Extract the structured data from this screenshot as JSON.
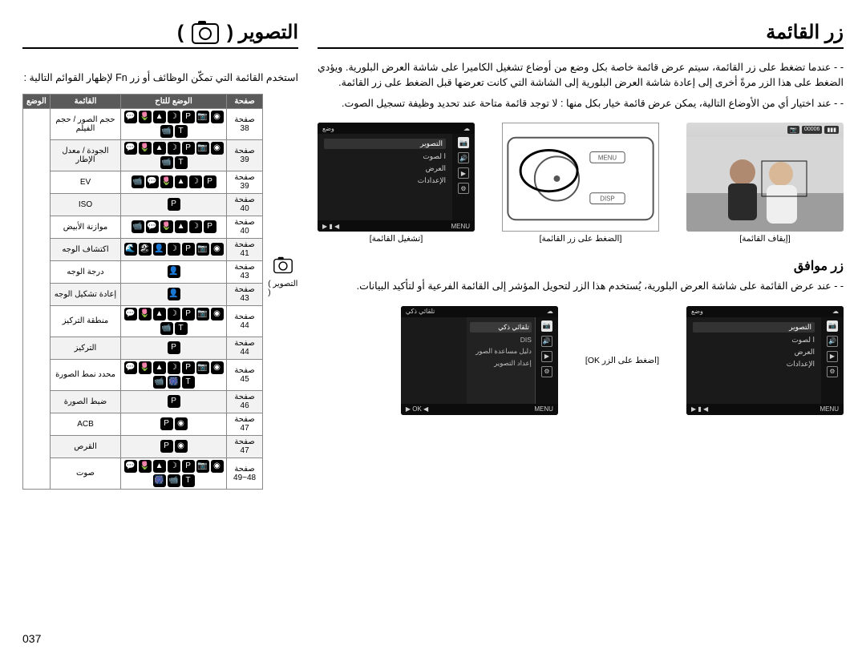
{
  "page_number": "037",
  "colors": {
    "text": "#000000",
    "table_head_bg": "#5a5a5a",
    "table_head_fg": "#ffffff",
    "table_border": "#888888",
    "lcd_bg": "#1a1a1a"
  },
  "right": {
    "heading": "زر القائمة",
    "para1": "-  عندما تضغط على زر القائمة، سيتم عرض قائمة خاصة بكل وضع من أوضاع تشغيل الكاميرا على شاشة العرض البلورية. ويؤدي الضغط على هذا الزر مرةً أخرى إلى إعادة شاشة العرض البلورية إلى الشاشة التي كانت تعرضها قبل الضغط على زر القائمة.",
    "para2": "-  عند اختيار أي من الأوضاع التالية، يمكن عرض قائمة خيار بكل منها : لا توجد قائمة متاحة عند تحديد وظيفة تسجيل الصوت.",
    "lcd1": {
      "head_right": "وضع",
      "side": [
        "📷",
        "🔊",
        "▶",
        "⚙"
      ],
      "items": [
        "التصوير",
        "ا لصوت",
        "العرض",
        "الإعدادات"
      ],
      "foot_left": "MENU",
      "foot_nav": "◀ ▮ ▶",
      "caption": "[إيقاف القائمة]"
    },
    "sketch_caption": "[الضغط على زر القائمة]",
    "lcd2": {
      "head_right": "وضع",
      "side": [
        "📷",
        "🔊",
        "▶",
        "⚙"
      ],
      "items": [
        "التصوير",
        "ا لصوت",
        "العرض",
        "الإعدادات"
      ],
      "foot_left": "MENU",
      "foot_nav": "◀ ▮ ▶",
      "caption": "[تشغيل القائمة]"
    },
    "sub_heading": "زر موافق",
    "sub_para": "-  عند عرض القائمة على شاشة العرض البلورية، يُستخدم هذا الزر لتحويل المؤشر إلى القائمة الفرعية أو لتأكيد البيانات.",
    "lcd3": {
      "head_right": "وضع",
      "side": [
        "📷",
        "🔊",
        "▶",
        "⚙"
      ],
      "items": [
        "التصوير",
        "ا لصوت",
        "العرض",
        "الإعدادات"
      ],
      "foot_left": "MENU",
      "foot_nav": "◀ ▮ ▶"
    },
    "between": "[اضغط على الزر OK]",
    "lcd4": {
      "head_right": "تلقائي ذكي",
      "sub_items": [
        "تلقائي ذكي",
        "DIS",
        "دليل مساعدة الصور",
        "إعداد التصوير"
      ],
      "foot_left": "MENU",
      "foot_nav": "◀ OK ▶"
    }
  },
  "left": {
    "heading": "التصوير (",
    "heading_tail": ")",
    "intro": "استخدم القائمة التي تمكّن الوظائف أو زر Fn لإظهار القوائم التالية :",
    "mode_side_label": "( التصوير )",
    "table": {
      "head": {
        "page": "صفحة",
        "mode": "الوضع للتاح",
        "menu": "القائمة",
        "state": "الوضع"
      },
      "rows": [
        {
          "page": "صفحة 38",
          "menu": "حجم الصور / حجم\nالفيلم",
          "icons": [
            "◉",
            "📷",
            "P",
            "☽",
            "▲",
            "🌷",
            "💬",
            "T",
            "📹"
          ]
        },
        {
          "page": "صفحة 39",
          "menu": "الجودة / معدل الإطار",
          "icons": [
            "◉",
            "📷",
            "P",
            "☽",
            "▲",
            "🌷",
            "💬",
            "T",
            "📹"
          ]
        },
        {
          "page": "صفحة 39",
          "menu": "EV",
          "icons": [
            "P",
            "☽",
            "▲",
            "🌷",
            "💬",
            "📹"
          ]
        },
        {
          "page": "صفحة 40",
          "menu": "ISO",
          "icons": [
            "P"
          ]
        },
        {
          "page": "صفحة 40",
          "menu": "موازنة الأبيض",
          "icons": [
            "P",
            "☽",
            "▲",
            "🌷",
            "💬",
            "📹"
          ]
        },
        {
          "page": "صفحة 41",
          "menu": "اكتشاف الوجه",
          "icons": [
            "◉",
            "📷",
            "P",
            "☽",
            "👤",
            "🏖",
            "🌊"
          ]
        },
        {
          "page": "صفحة 43",
          "menu": "درجة الوجه",
          "icons": [
            "👤"
          ]
        },
        {
          "page": "صفحة 43",
          "menu": "إعادة تشكيل الوجه",
          "icons": [
            "👤"
          ]
        },
        {
          "page": "صفحة 44",
          "menu": "منطقة التركيز",
          "icons": [
            "◉",
            "📷",
            "P",
            "☽",
            "▲",
            "🌷",
            "💬",
            "T",
            "📹"
          ]
        },
        {
          "page": "صفحة 44",
          "menu": "التركيز",
          "icons": [
            "P"
          ]
        },
        {
          "page": "صفحة 45",
          "menu": "محدد نمط الصورة",
          "icons": [
            "◉",
            "📷",
            "P",
            "☽",
            "▲",
            "🌷",
            "💬",
            "T",
            "🎆",
            "📹"
          ]
        },
        {
          "page": "صفحة 46",
          "menu": "ضبط الصورة",
          "icons": [
            "P"
          ]
        },
        {
          "page": "صفحة 47",
          "menu": "ACB",
          "icons": [
            "◉",
            "P"
          ]
        },
        {
          "page": "صفحة 47",
          "menu": "القرص",
          "icons": [
            "◉",
            "P"
          ]
        },
        {
          "page": "صفحة\n48~49",
          "menu": "صوت",
          "icons": [
            "◉",
            "📷",
            "P",
            "☽",
            "▲",
            "🌷",
            "💬",
            "T",
            "📹",
            "🎆"
          ]
        }
      ]
    }
  }
}
